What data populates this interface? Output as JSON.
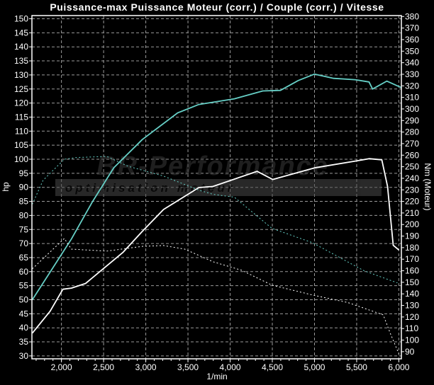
{
  "chart_data": {
    "type": "line",
    "title": "Puissance-max Puissance Moteur (corr.) / Couple (corr.) / Vitesse",
    "xlabel": "1/min",
    "ylabel": "hp",
    "y2label": "Nm (Moteur)",
    "xlim": [
      1650,
      6030
    ],
    "ylim": [
      30,
      150
    ],
    "y2lim": [
      88,
      382
    ],
    "xticks": [
      2000,
      2500,
      3000,
      3500,
      4000,
      4500,
      5000,
      5500,
      6000
    ],
    "xtick_labels": [
      "2,000",
      "2,500",
      "3,000",
      "3,500",
      "4,000",
      "4,500",
      "5,000",
      "5,500",
      "6,000"
    ],
    "yticks": [
      30,
      35,
      40,
      45,
      50,
      55,
      60,
      65,
      70,
      75,
      80,
      85,
      90,
      95,
      100,
      105,
      110,
      115,
      120,
      125,
      130,
      135,
      140,
      145,
      150
    ],
    "y2ticks": [
      90,
      100,
      110,
      120,
      130,
      140,
      150,
      160,
      170,
      180,
      190,
      200,
      210,
      220,
      230,
      240,
      250,
      260,
      270,
      280,
      290,
      300,
      310,
      320,
      330,
      340,
      350,
      360,
      370,
      380
    ],
    "grid": true,
    "background": "#000000",
    "watermark": {
      "line1": "BR-Performance",
      "line2": "optimisation moteur"
    },
    "series": [
      {
        "axis": "left",
        "style": "solid",
        "color": "#66cfc6",
        "x": [
          1655,
          2118,
          2370,
          2622,
          2958,
          3378,
          3630,
          4050,
          4387,
          4597,
          4807,
          5000,
          5227,
          5479,
          5647,
          5689,
          5857,
          6030
        ],
        "y": [
          50,
          71.6,
          85,
          97,
          107,
          116.5,
          119.5,
          121.5,
          124.3,
          124.5,
          128,
          130.3,
          128.8,
          128.3,
          127.5,
          125,
          127.8,
          125.5
        ]
      },
      {
        "axis": "right",
        "style": "solid",
        "color": "#ffffff",
        "x": [
          1655,
          1866,
          2017,
          2118,
          2286,
          2731,
          2958,
          3210,
          3630,
          3798,
          4319,
          4504,
          5000,
          5496,
          5647,
          5798,
          5866,
          5933,
          6000
        ],
        "y": [
          106,
          125,
          144,
          145,
          149,
          176,
          194,
          213,
          232,
          233,
          246,
          239,
          249,
          255,
          257,
          256,
          233,
          182,
          178
        ]
      },
      {
        "axis": "left",
        "style": "dashed",
        "color": "#66cfc6",
        "x": [
          1655,
          1782,
          2034,
          2176,
          2538,
          2790,
          3210,
          3630,
          3798,
          4050,
          4496,
          4975,
          5588,
          5983
        ],
        "y": [
          84,
          92.5,
          100,
          100.6,
          101,
          97.5,
          94,
          89,
          87.5,
          86.5,
          75.4,
          70.3,
          60.3,
          56
        ]
      },
      {
        "axis": "left",
        "style": "dashed",
        "color": "#ffffff",
        "x": [
          1655,
          2034,
          2118,
          2538,
          2958,
          3210,
          3462,
          3798,
          4134,
          4496,
          4975,
          5395,
          5815,
          5899,
          6000
        ],
        "y": [
          61,
          71.8,
          68,
          67.3,
          69,
          69.3,
          68,
          63.5,
          60.5,
          55.2,
          51.7,
          49,
          44.6,
          38,
          30.8
        ]
      }
    ]
  }
}
